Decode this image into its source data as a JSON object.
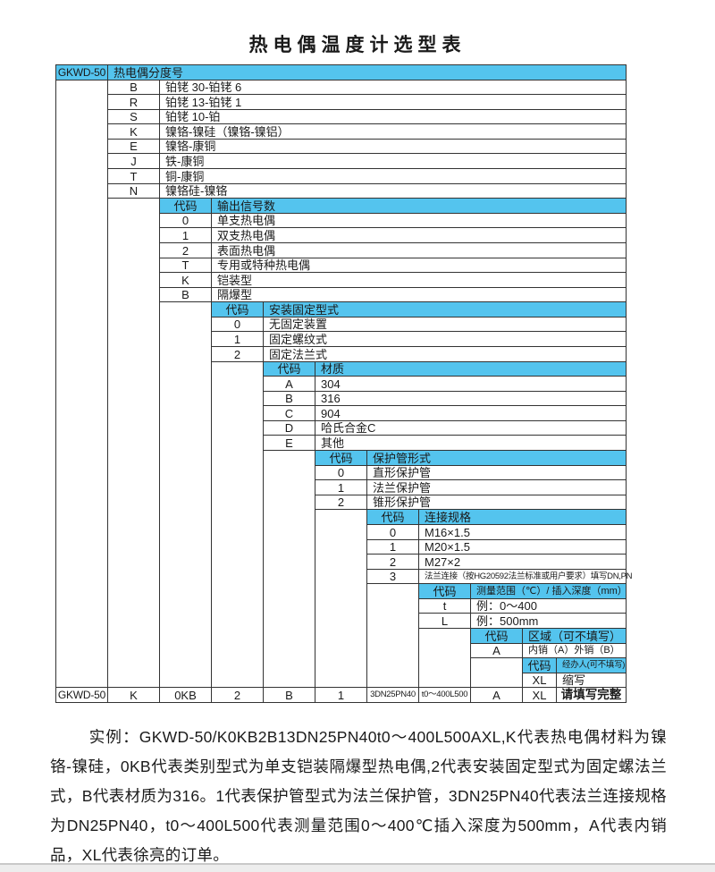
{
  "title": "热电偶温度计选型表",
  "colors": {
    "header_bg": "#54c4ee",
    "border": "#333333"
  },
  "table": {
    "sections": [
      {
        "code_header": "GKWD-50",
        "label_header": "热电偶分度号",
        "rows": [
          {
            "code": "B",
            "label": "铂铑 30-铂铑 6"
          },
          {
            "code": "R",
            "label": "铂铑 13-铂铑 1"
          },
          {
            "code": "S",
            "label": "铂铑 10-铂"
          },
          {
            "code": "K",
            "label": "镍铬-镍硅（镍铬-镍铝）"
          },
          {
            "code": "E",
            "label": "镍铬-康铜"
          },
          {
            "code": "J",
            "label": "铁-康铜"
          },
          {
            "code": "T",
            "label": "铜-康铜"
          },
          {
            "code": "N",
            "label": "镍铬硅-镍铬"
          }
        ]
      },
      {
        "code_header": "代码",
        "label_header": "输出信号数",
        "rows": [
          {
            "code": "0",
            "label": "单支热电偶"
          },
          {
            "code": "1",
            "label": "双支热电偶"
          },
          {
            "code": "2",
            "label": "表面热电偶"
          },
          {
            "code": "T",
            "label": "专用或特种热电偶"
          },
          {
            "code": "K",
            "label": "铠装型"
          },
          {
            "code": "B",
            "label": "隔爆型"
          }
        ]
      },
      {
        "code_header": "代码",
        "label_header": "安装固定型式",
        "rows": [
          {
            "code": "0",
            "label": "无固定装置"
          },
          {
            "code": "1",
            "label": "固定螺纹式"
          },
          {
            "code": "2",
            "label": "固定法兰式"
          }
        ]
      },
      {
        "code_header": "代码",
        "label_header": "材质",
        "rows": [
          {
            "code": "A",
            "label": "304"
          },
          {
            "code": "B",
            "label": "316"
          },
          {
            "code": "C",
            "label": "904"
          },
          {
            "code": "D",
            "label": "哈氏合金C"
          },
          {
            "code": "E",
            "label": "其他"
          }
        ]
      },
      {
        "code_header": "代码",
        "label_header": "保护管形式",
        "rows": [
          {
            "code": "0",
            "label": "直形保护管"
          },
          {
            "code": "1",
            "label": "法兰保护管"
          },
          {
            "code": "2",
            "label": "锥形保护管"
          }
        ]
      },
      {
        "code_header": "代码",
        "label_header": "连接规格",
        "rows": [
          {
            "code": "0",
            "label": "M16×1.5"
          },
          {
            "code": "1",
            "label": "M20×1.5"
          },
          {
            "code": "2",
            "label": "M27×2"
          },
          {
            "code": "3",
            "label": "法兰连接（按HG20592法兰标准或用户要求）填写DN,PN",
            "small": "xs"
          }
        ]
      },
      {
        "code_header": "代码",
        "label_header": "测量范围（℃）/ 插入深度（mm）",
        "header_small": "sm",
        "rows": [
          {
            "code": "t",
            "label": "例：0～400"
          },
          {
            "code": "L",
            "label": "例：500mm"
          }
        ]
      },
      {
        "code_header": "代码",
        "label_header": "区域（可不填写）",
        "rows": [
          {
            "code": "A",
            "label": "内销（A）外销（B）",
            "small": "sm"
          }
        ]
      },
      {
        "code_header": "代码",
        "label_header": "经办人(可不填写)",
        "header_small": "xs",
        "rows": [
          {
            "code": "XL",
            "label": "缩写"
          }
        ]
      }
    ],
    "final_row": [
      "GKWD-50",
      "K",
      "0KB",
      "2",
      "B",
      "1",
      "3DN25PN40",
      "t0～400L500",
      "A",
      "XL",
      "请填写完整"
    ]
  },
  "example_text": "实例：GKWD-50/K0KB2B13DN25PN40t0～400L500AXL,K代表热电偶材料为镍铬-镍硅，0KB代表类别型式为单支铠装隔爆型热电偶,2代表安装固定型式为固定螺法兰式，B代表材质为316。1代表保护管型式为法兰保护管，3DN25PN40代表法兰连接规格为DN25PN40，t0～400L500代表测量范围0～400℃插入深度为500mm，A代表内销品，XL代表徐亮的订单。"
}
